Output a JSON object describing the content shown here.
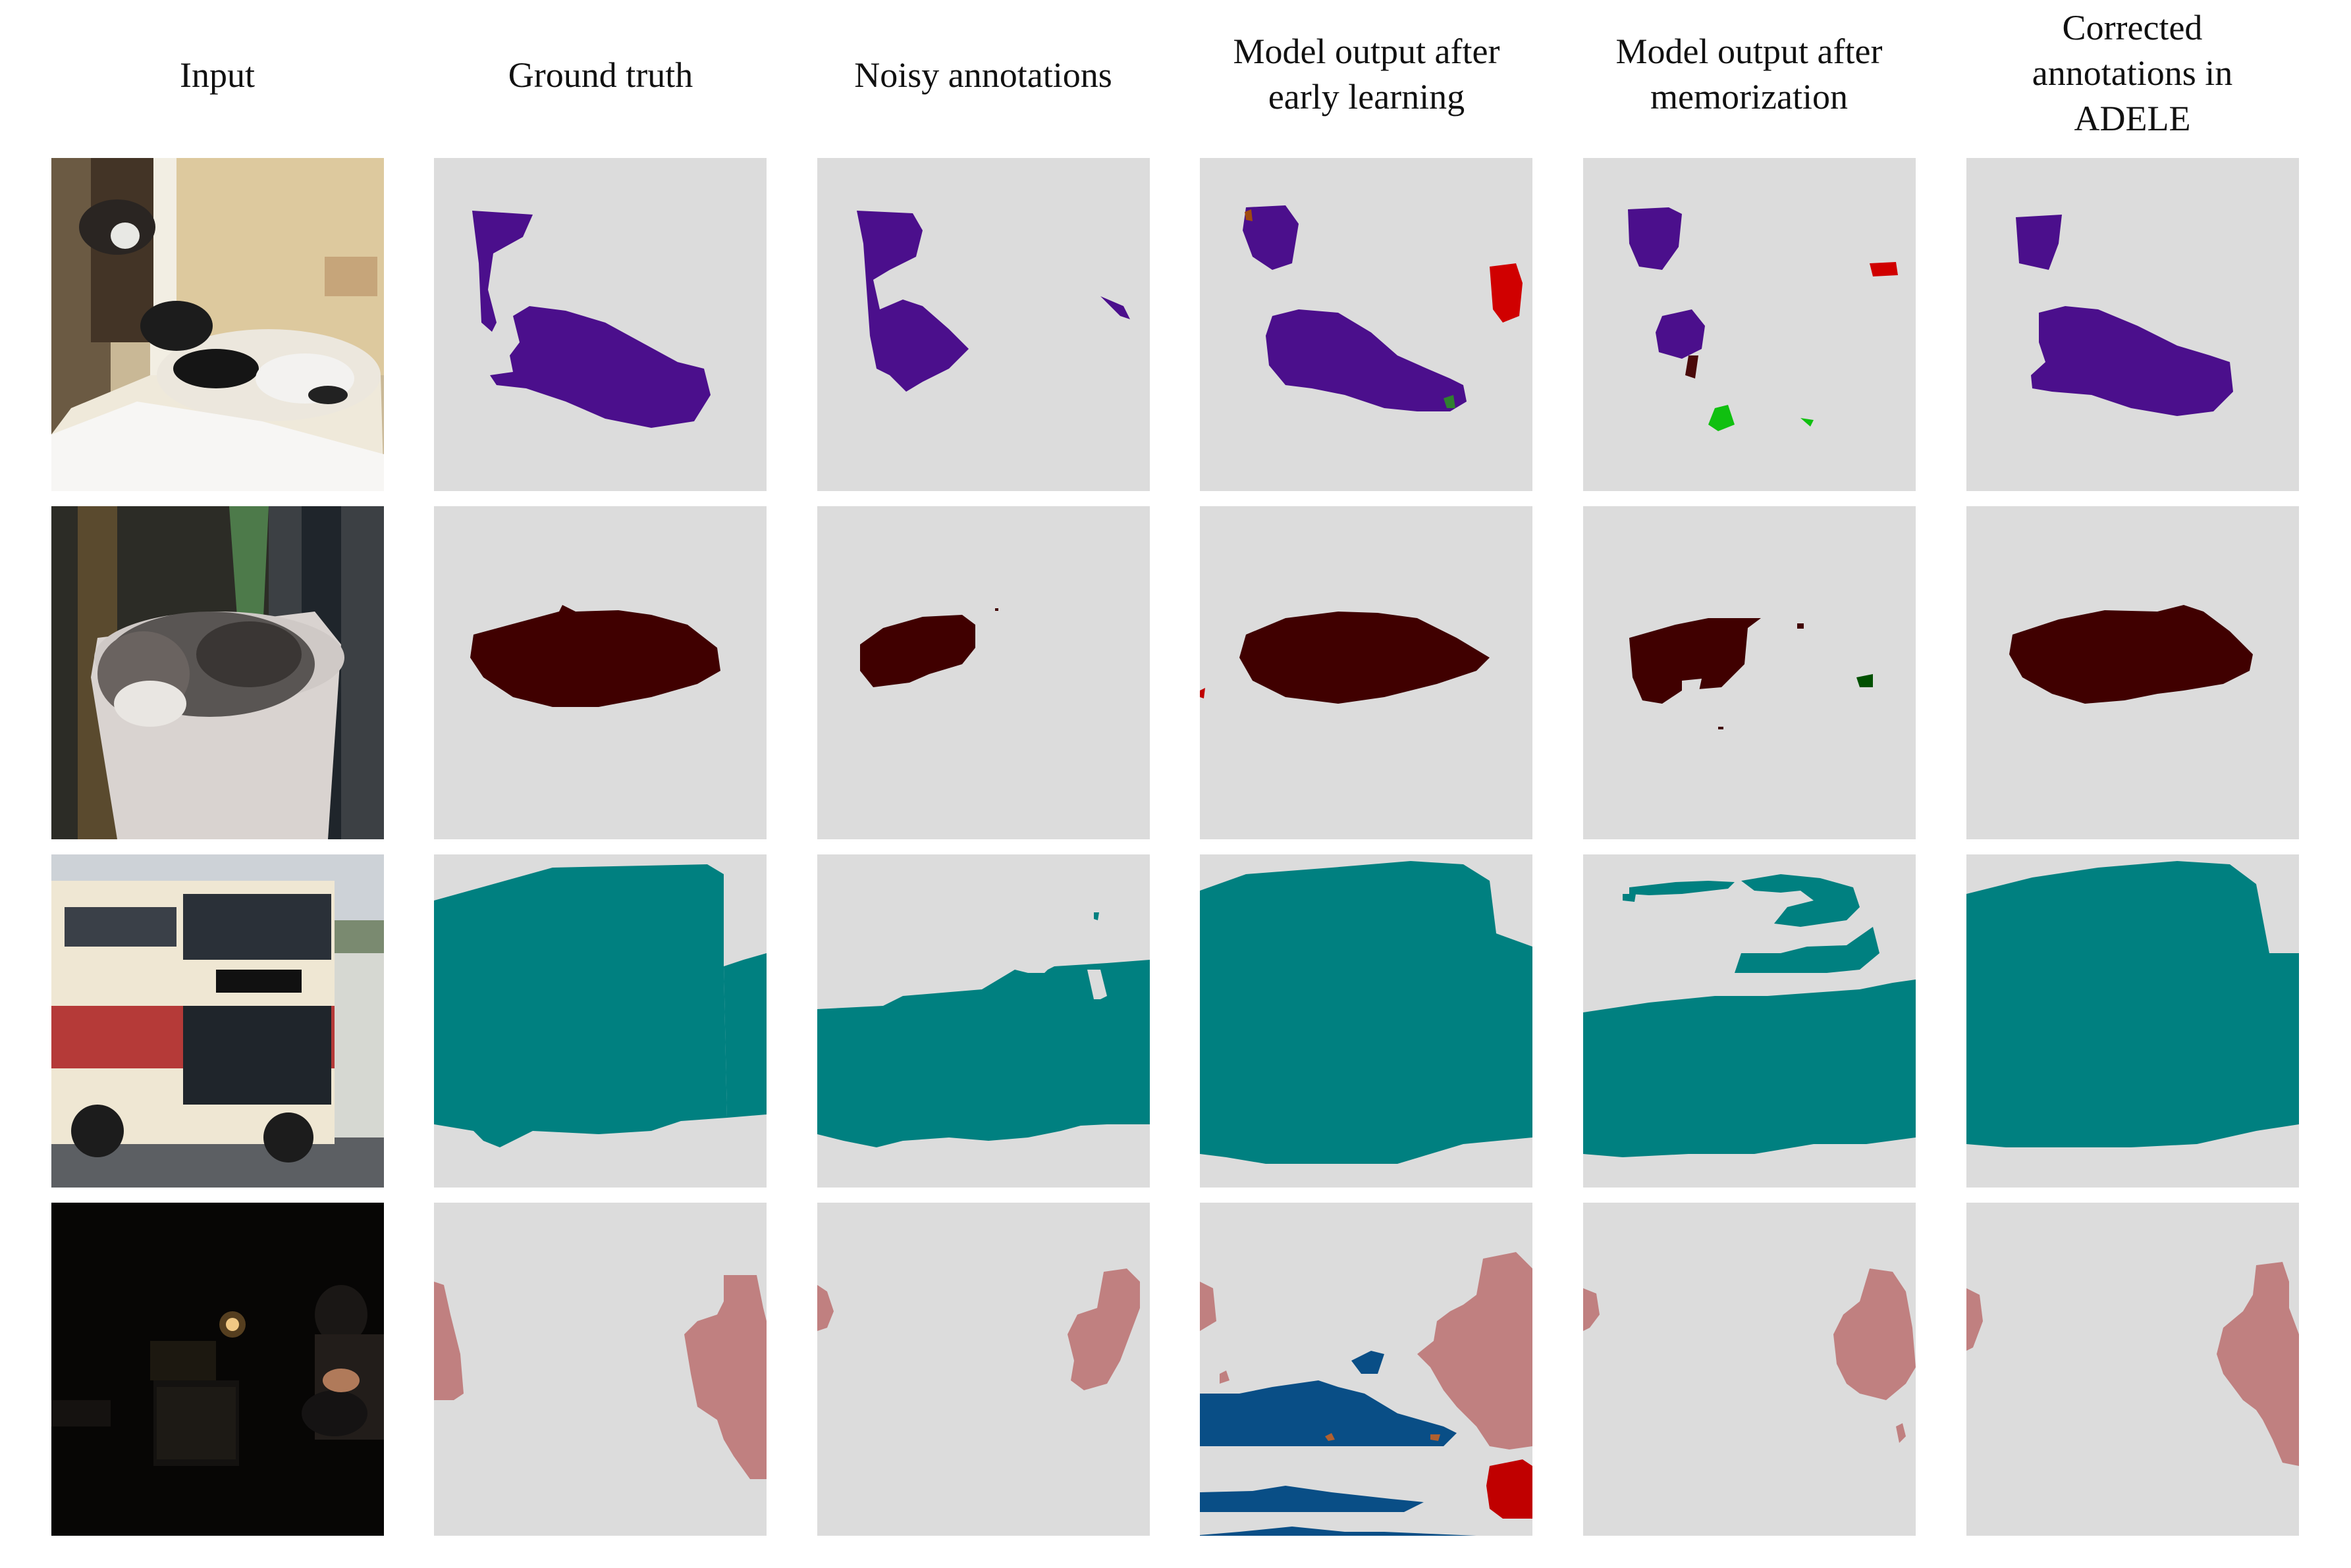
{
  "columns": [
    "Input",
    "Ground truth",
    "Noisy annotations",
    "Model output after early learning",
    "Model output after memorization",
    "Corrected annotations in ADELE"
  ],
  "header_lines": {
    "c0": [
      "Input"
    ],
    "c1": [
      "Ground truth"
    ],
    "c2": [
      "Noisy annotations"
    ],
    "c3": [
      "Model output after",
      "early learning"
    ],
    "c4": [
      "Model output after",
      "memorization"
    ],
    "c5": [
      "Corrected",
      "annotations in",
      "ADELE"
    ]
  },
  "rows": [
    "dog",
    "cat",
    "bus",
    "person"
  ],
  "class_colors": {
    "background": "#dcdcdc",
    "dog": "#4b0f8c",
    "cat": "#400000",
    "bus": "#008080",
    "person": "#c08080",
    "tvmonitor": "#094e86",
    "aeroplane": "#c00000",
    "pottedplant": "#10c010",
    "plant_dark": "#004000"
  }
}
